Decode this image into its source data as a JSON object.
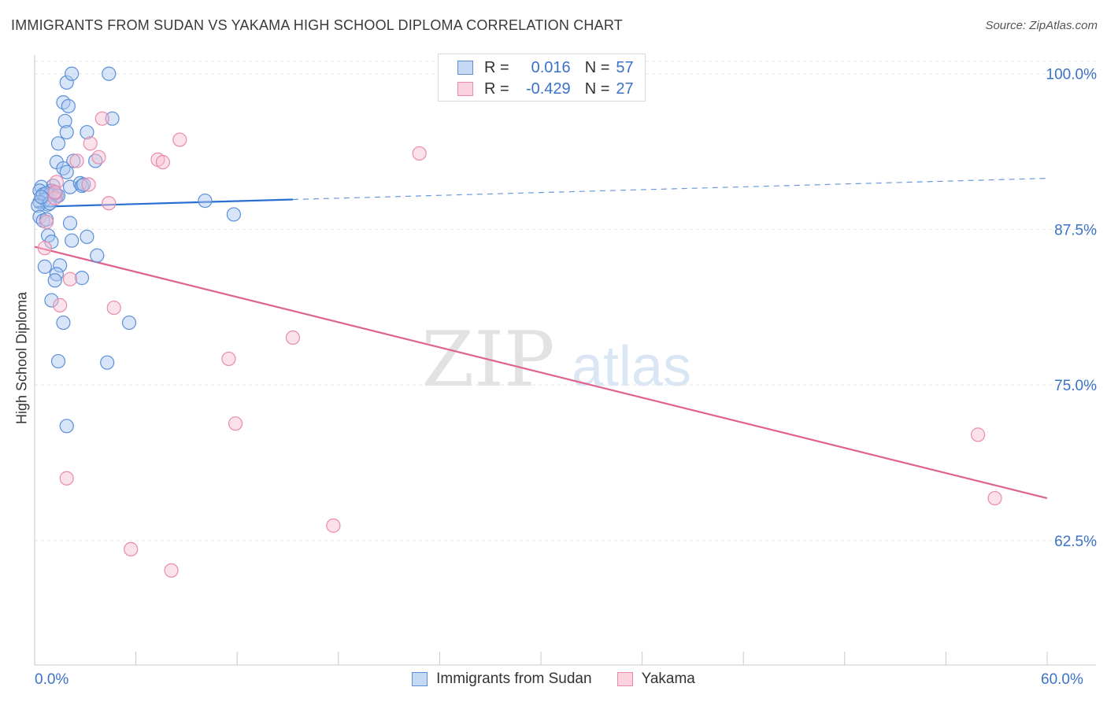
{
  "title": "IMMIGRANTS FROM SUDAN VS YAKAMA HIGH SCHOOL DIPLOMA CORRELATION CHART",
  "source": "Source: ZipAtlas.com",
  "watermark": {
    "zip": "ZIP",
    "atlas": "atlas"
  },
  "legend_top": [
    {
      "r_label": "R =",
      "r_value": "0.016",
      "n_label": "N =",
      "n_value": "57"
    },
    {
      "r_label": "R =",
      "r_value": "-0.429",
      "n_label": "N =",
      "n_value": "27"
    }
  ],
  "colors": {
    "sudan_fill": "#a8c6f0",
    "sudan_stroke": "#5b8fd8",
    "sudan_line": "#2a6fd0",
    "yakama_fill": "#f7bfd0",
    "yakama_stroke": "#e98aab",
    "yakama_line": "#e0628e",
    "tick_label": "#3a72c8"
  },
  "chart_data": {
    "type": "scatter",
    "title": "IMMIGRANTS FROM SUDAN VS YAKAMA HIGH SCHOOL DIPLOMA CORRELATION CHART",
    "xlabel": "",
    "ylabel": "High School Diploma",
    "xlim": [
      0,
      60
    ],
    "ylim": [
      52.5,
      101.5
    ],
    "x_tick_labels": [
      "0.0%",
      "60.0%"
    ],
    "y_ticks": [
      62.5,
      75.0,
      87.5,
      100.0
    ],
    "y_tick_labels": [
      "62.5%",
      "75.0%",
      "87.5%",
      "100.0%"
    ],
    "grid": true,
    "legend_placement": "bottom-center",
    "series": [
      {
        "name": "Immigrants from Sudan",
        "R": 0.016,
        "N": 57,
        "trend": {
          "x0": 0,
          "y0": 89.3,
          "x1": 15.3,
          "y1": 89.9,
          "dash_to_x": 60,
          "dash_to_y": 91.6
        },
        "points": [
          [
            1.9,
            99.3
          ],
          [
            2.2,
            100.0
          ],
          [
            4.4,
            100.0
          ],
          [
            1.7,
            97.7
          ],
          [
            2.0,
            97.4
          ],
          [
            4.6,
            96.4
          ],
          [
            1.8,
            96.2
          ],
          [
            1.9,
            95.3
          ],
          [
            3.1,
            95.3
          ],
          [
            1.4,
            94.4
          ],
          [
            1.3,
            92.9
          ],
          [
            2.3,
            93.0
          ],
          [
            3.6,
            93.0
          ],
          [
            1.7,
            92.4
          ],
          [
            1.9,
            92.1
          ],
          [
            0.4,
            90.9
          ],
          [
            1.1,
            91.0
          ],
          [
            1.0,
            90.6
          ],
          [
            2.1,
            90.9
          ],
          [
            2.7,
            91.2
          ],
          [
            2.8,
            91.0
          ],
          [
            0.3,
            90.6
          ],
          [
            0.5,
            90.3
          ],
          [
            0.9,
            90.3
          ],
          [
            1.3,
            90.2
          ],
          [
            1.4,
            90.2
          ],
          [
            0.7,
            90.4
          ],
          [
            0.6,
            89.9
          ],
          [
            0.3,
            89.7
          ],
          [
            0.8,
            89.5
          ],
          [
            0.2,
            89.4
          ],
          [
            0.9,
            89.6
          ],
          [
            10.1,
            89.8
          ],
          [
            11.8,
            88.7
          ],
          [
            0.3,
            88.5
          ],
          [
            0.5,
            88.2
          ],
          [
            2.1,
            88.0
          ],
          [
            0.8,
            87.0
          ],
          [
            3.1,
            86.9
          ],
          [
            2.2,
            86.6
          ],
          [
            1.0,
            86.5
          ],
          [
            3.7,
            85.4
          ],
          [
            0.6,
            84.5
          ],
          [
            1.5,
            84.6
          ],
          [
            1.3,
            83.9
          ],
          [
            2.8,
            83.6
          ],
          [
            1.2,
            83.4
          ],
          [
            1.0,
            81.8
          ],
          [
            1.7,
            80.0
          ],
          [
            5.6,
            80.0
          ],
          [
            1.4,
            76.9
          ],
          [
            4.3,
            76.8
          ],
          [
            1.9,
            71.7
          ],
          [
            0.7,
            88.3
          ],
          [
            1.2,
            90.4
          ],
          [
            0.4,
            90.1
          ],
          [
            2.9,
            91.1
          ]
        ]
      },
      {
        "name": "Yakama",
        "R": -0.429,
        "N": 27,
        "trend": {
          "x0": 0,
          "y0": 86.1,
          "x1": 60,
          "y1": 65.9
        },
        "points": [
          [
            4.0,
            96.4
          ],
          [
            8.6,
            94.7
          ],
          [
            3.3,
            94.4
          ],
          [
            7.3,
            93.1
          ],
          [
            7.6,
            92.9
          ],
          [
            22.8,
            93.6
          ],
          [
            2.5,
            93.0
          ],
          [
            3.8,
            93.3
          ],
          [
            1.3,
            91.3
          ],
          [
            3.2,
            91.1
          ],
          [
            1.2,
            90.0
          ],
          [
            4.4,
            89.6
          ],
          [
            0.7,
            88.1
          ],
          [
            0.6,
            86.0
          ],
          [
            2.1,
            83.5
          ],
          [
            1.5,
            81.4
          ],
          [
            4.7,
            81.2
          ],
          [
            15.3,
            78.8
          ],
          [
            11.5,
            77.1
          ],
          [
            11.9,
            71.9
          ],
          [
            55.9,
            71.0
          ],
          [
            1.9,
            67.5
          ],
          [
            56.9,
            65.9
          ],
          [
            17.7,
            63.7
          ],
          [
            5.7,
            61.8
          ],
          [
            8.1,
            60.1
          ],
          [
            1.2,
            90.5
          ]
        ]
      }
    ]
  },
  "legend_bottom": [
    "Immigrants from Sudan",
    "Yakama"
  ]
}
